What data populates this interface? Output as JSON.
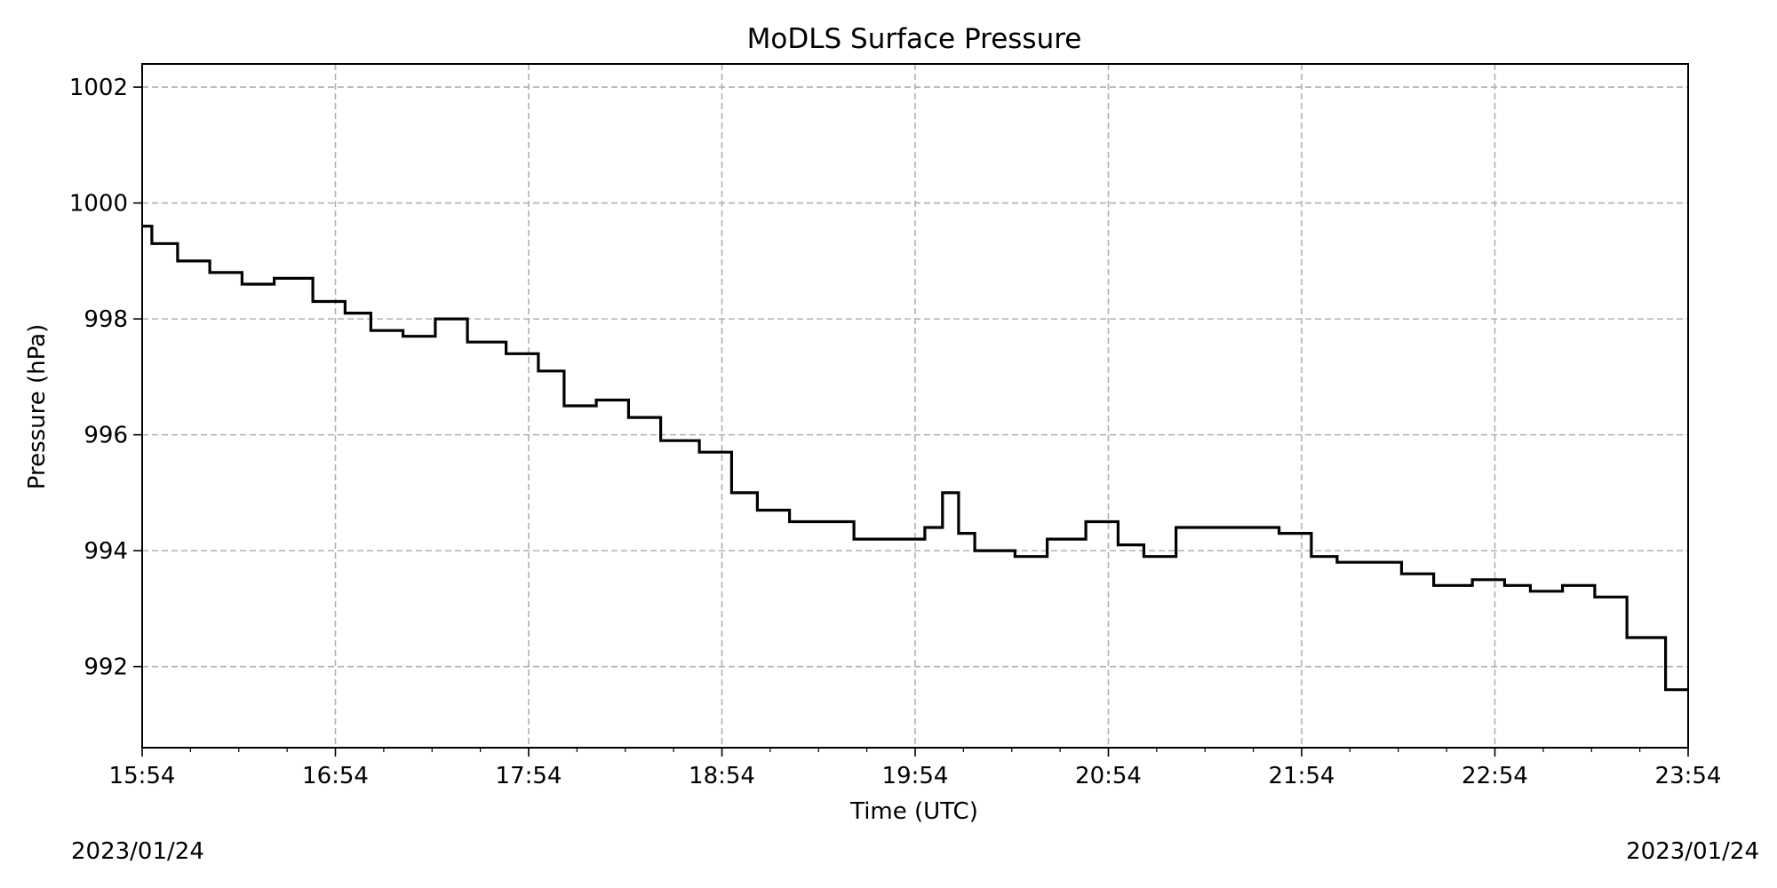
{
  "chart_data": {
    "type": "line",
    "title": "MoDLS Surface Pressure",
    "xlabel": "Time (UTC)",
    "ylabel": "Pressure (hPa)",
    "date_left": "2023/01/24",
    "date_right": "2023/01/24",
    "x_ticks": [
      "15:54",
      "16:54",
      "17:54",
      "18:54",
      "19:54",
      "20:54",
      "21:54",
      "22:54",
      "23:54"
    ],
    "y_ticks": [
      992,
      994,
      996,
      998,
      1000,
      1002
    ],
    "xlim": [
      "15:54",
      "23:54"
    ],
    "ylim": [
      990.6,
      1002.4
    ],
    "grid": true,
    "line_color": "#000000",
    "series": [
      {
        "x": [
          "15:54",
          "16:00",
          "16:10",
          "16:20",
          "16:30",
          "16:40",
          "16:54",
          "17:00",
          "17:10",
          "17:20",
          "17:30",
          "17:40",
          "17:54",
          "18:00",
          "18:10",
          "18:20",
          "18:30",
          "18:40",
          "18:54",
          "19:00",
          "19:10",
          "19:20",
          "19:30",
          "19:40",
          "19:54",
          "20:00",
          "20:05",
          "20:10",
          "20:15",
          "20:20",
          "20:30",
          "20:40",
          "20:54",
          "21:00",
          "21:10",
          "21:20",
          "21:30",
          "21:40",
          "21:54",
          "22:00",
          "22:10",
          "22:20",
          "22:30",
          "22:40",
          "22:54",
          "23:00",
          "23:10",
          "23:20",
          "23:30",
          "23:40",
          "23:54"
        ],
        "y": [
          999.6,
          999.3,
          999.0,
          998.8,
          998.6,
          998.7,
          998.3,
          998.1,
          997.8,
          997.7,
          998.0,
          997.6,
          997.4,
          997.1,
          996.5,
          996.6,
          996.3,
          995.9,
          995.7,
          995.0,
          994.7,
          994.5,
          994.5,
          994.2,
          994.2,
          994.4,
          995.0,
          994.3,
          994.0,
          994.0,
          993.9,
          994.2,
          994.5,
          994.1,
          993.9,
          994.4,
          994.4,
          994.4,
          994.3,
          993.9,
          993.8,
          993.8,
          993.6,
          993.4,
          993.5,
          993.4,
          993.3,
          993.4,
          993.2,
          992.5,
          991.6
        ]
      }
    ]
  }
}
